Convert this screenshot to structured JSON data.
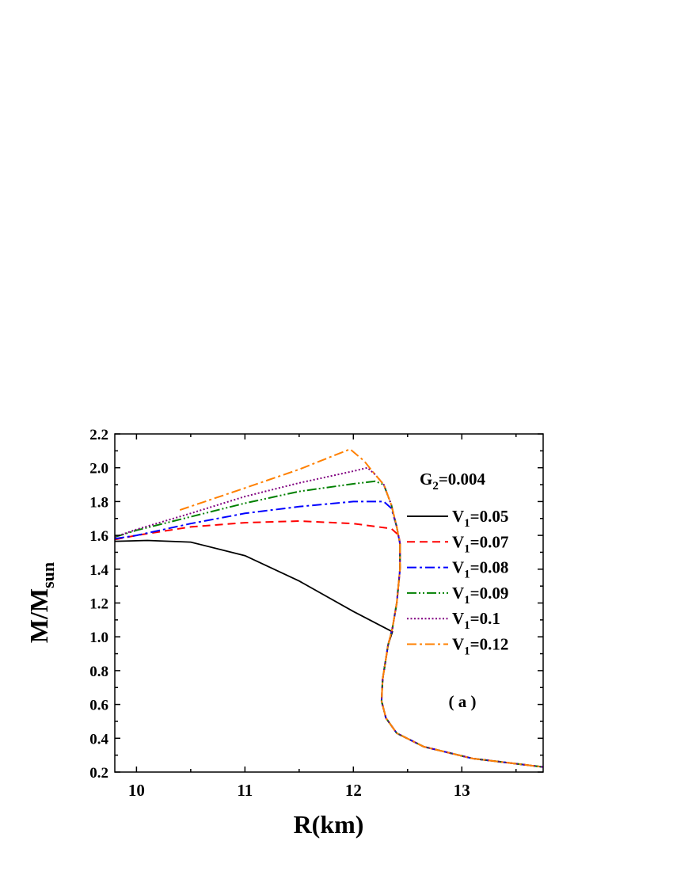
{
  "chart_data": {
    "type": "line",
    "title": "",
    "xlabel": "R(km)",
    "ylabel": {
      "main": "M/M",
      "sub": "sun"
    },
    "xlim": [
      9.8,
      13.75
    ],
    "ylim": [
      0.2,
      2.2
    ],
    "xticks": [
      10,
      11,
      12,
      13
    ],
    "yticks": [
      0.2,
      0.4,
      0.6,
      0.8,
      1.0,
      1.2,
      1.4,
      1.6,
      1.8,
      2.0,
      2.2
    ],
    "grid": false,
    "legend_placement": "right",
    "parameter_label": {
      "main": "G",
      "sub": "2",
      "rest": "=0.004"
    },
    "panel_label": "( a )",
    "series": [
      {
        "name": "V1=0.05",
        "color": "#000000",
        "style": "solid",
        "x": [
          9.8,
          10.1,
          10.5,
          11.0,
          11.5,
          12.0,
          12.33,
          12.36,
          12.32,
          12.27,
          12.26,
          12.3,
          12.4,
          12.65,
          13.1,
          13.75
        ],
        "y": [
          1.565,
          1.57,
          1.56,
          1.48,
          1.33,
          1.15,
          1.04,
          1.03,
          0.95,
          0.75,
          0.62,
          0.52,
          0.43,
          0.35,
          0.28,
          0.23
        ]
      },
      {
        "name": "V1=0.07",
        "color": "#ff0000",
        "style": "dash",
        "x": [
          9.8,
          10.0,
          10.5,
          11.0,
          11.5,
          12.0,
          12.35,
          12.42,
          12.43,
          12.43,
          12.4,
          12.36,
          12.32,
          12.27,
          12.26,
          12.3,
          12.4,
          12.65,
          13.1,
          13.75
        ],
        "y": [
          1.575,
          1.6,
          1.65,
          1.675,
          1.685,
          1.67,
          1.64,
          1.6,
          1.55,
          1.4,
          1.2,
          1.05,
          0.95,
          0.75,
          0.62,
          0.52,
          0.43,
          0.35,
          0.28,
          0.23
        ]
      },
      {
        "name": "V1=0.08",
        "color": "#0000ff",
        "style": "dashdot",
        "x": [
          9.8,
          10.0,
          10.5,
          11.0,
          11.5,
          12.0,
          12.28,
          12.35,
          12.4,
          12.43,
          12.43,
          12.4,
          12.36,
          12.32,
          12.27,
          12.26,
          12.3,
          12.4,
          12.65,
          13.1,
          13.75
        ],
        "y": [
          1.58,
          1.6,
          1.67,
          1.73,
          1.77,
          1.8,
          1.8,
          1.76,
          1.65,
          1.55,
          1.4,
          1.2,
          1.05,
          0.95,
          0.75,
          0.62,
          0.52,
          0.43,
          0.35,
          0.28,
          0.23
        ]
      },
      {
        "name": "V1=0.09",
        "color": "#008000",
        "style": "dashdotdot",
        "x": [
          9.8,
          10.0,
          10.5,
          11.0,
          11.5,
          12.0,
          12.2,
          12.28,
          12.35,
          12.4,
          12.43,
          12.43,
          12.4,
          12.36,
          12.32,
          12.27,
          12.26,
          12.3,
          12.4,
          12.65,
          13.1,
          13.75
        ],
        "y": [
          1.59,
          1.63,
          1.71,
          1.79,
          1.86,
          1.905,
          1.92,
          1.9,
          1.78,
          1.65,
          1.55,
          1.4,
          1.2,
          1.05,
          0.95,
          0.75,
          0.62,
          0.52,
          0.43,
          0.35,
          0.28,
          0.23
        ]
      },
      {
        "name": "V1=0.1",
        "color": "#800080",
        "style": "dot",
        "x": [
          9.8,
          10.0,
          10.5,
          11.0,
          11.5,
          12.0,
          12.13,
          12.2,
          12.28,
          12.35,
          12.4,
          12.43,
          12.43,
          12.4,
          12.36,
          12.32,
          12.27,
          12.26,
          12.3,
          12.4,
          12.65,
          13.1,
          13.75
        ],
        "y": [
          1.59,
          1.635,
          1.73,
          1.83,
          1.91,
          1.98,
          2.0,
          1.96,
          1.9,
          1.78,
          1.65,
          1.55,
          1.4,
          1.2,
          1.05,
          0.95,
          0.75,
          0.62,
          0.52,
          0.43,
          0.35,
          0.28,
          0.23
        ]
      },
      {
        "name": "V1=0.12",
        "color": "#ff8000",
        "style": "dashdot",
        "x": [
          10.4,
          11.0,
          11.5,
          11.97,
          12.1,
          12.2,
          12.28,
          12.35,
          12.4,
          12.43,
          12.43,
          12.4,
          12.36,
          12.32,
          12.27,
          12.26,
          12.3,
          12.4,
          12.65,
          13.1,
          13.75
        ],
        "y": [
          1.75,
          1.88,
          1.99,
          2.11,
          2.04,
          1.96,
          1.9,
          1.78,
          1.65,
          1.55,
          1.4,
          1.2,
          1.05,
          0.95,
          0.75,
          0.62,
          0.52,
          0.43,
          0.35,
          0.28,
          0.23
        ]
      }
    ]
  }
}
